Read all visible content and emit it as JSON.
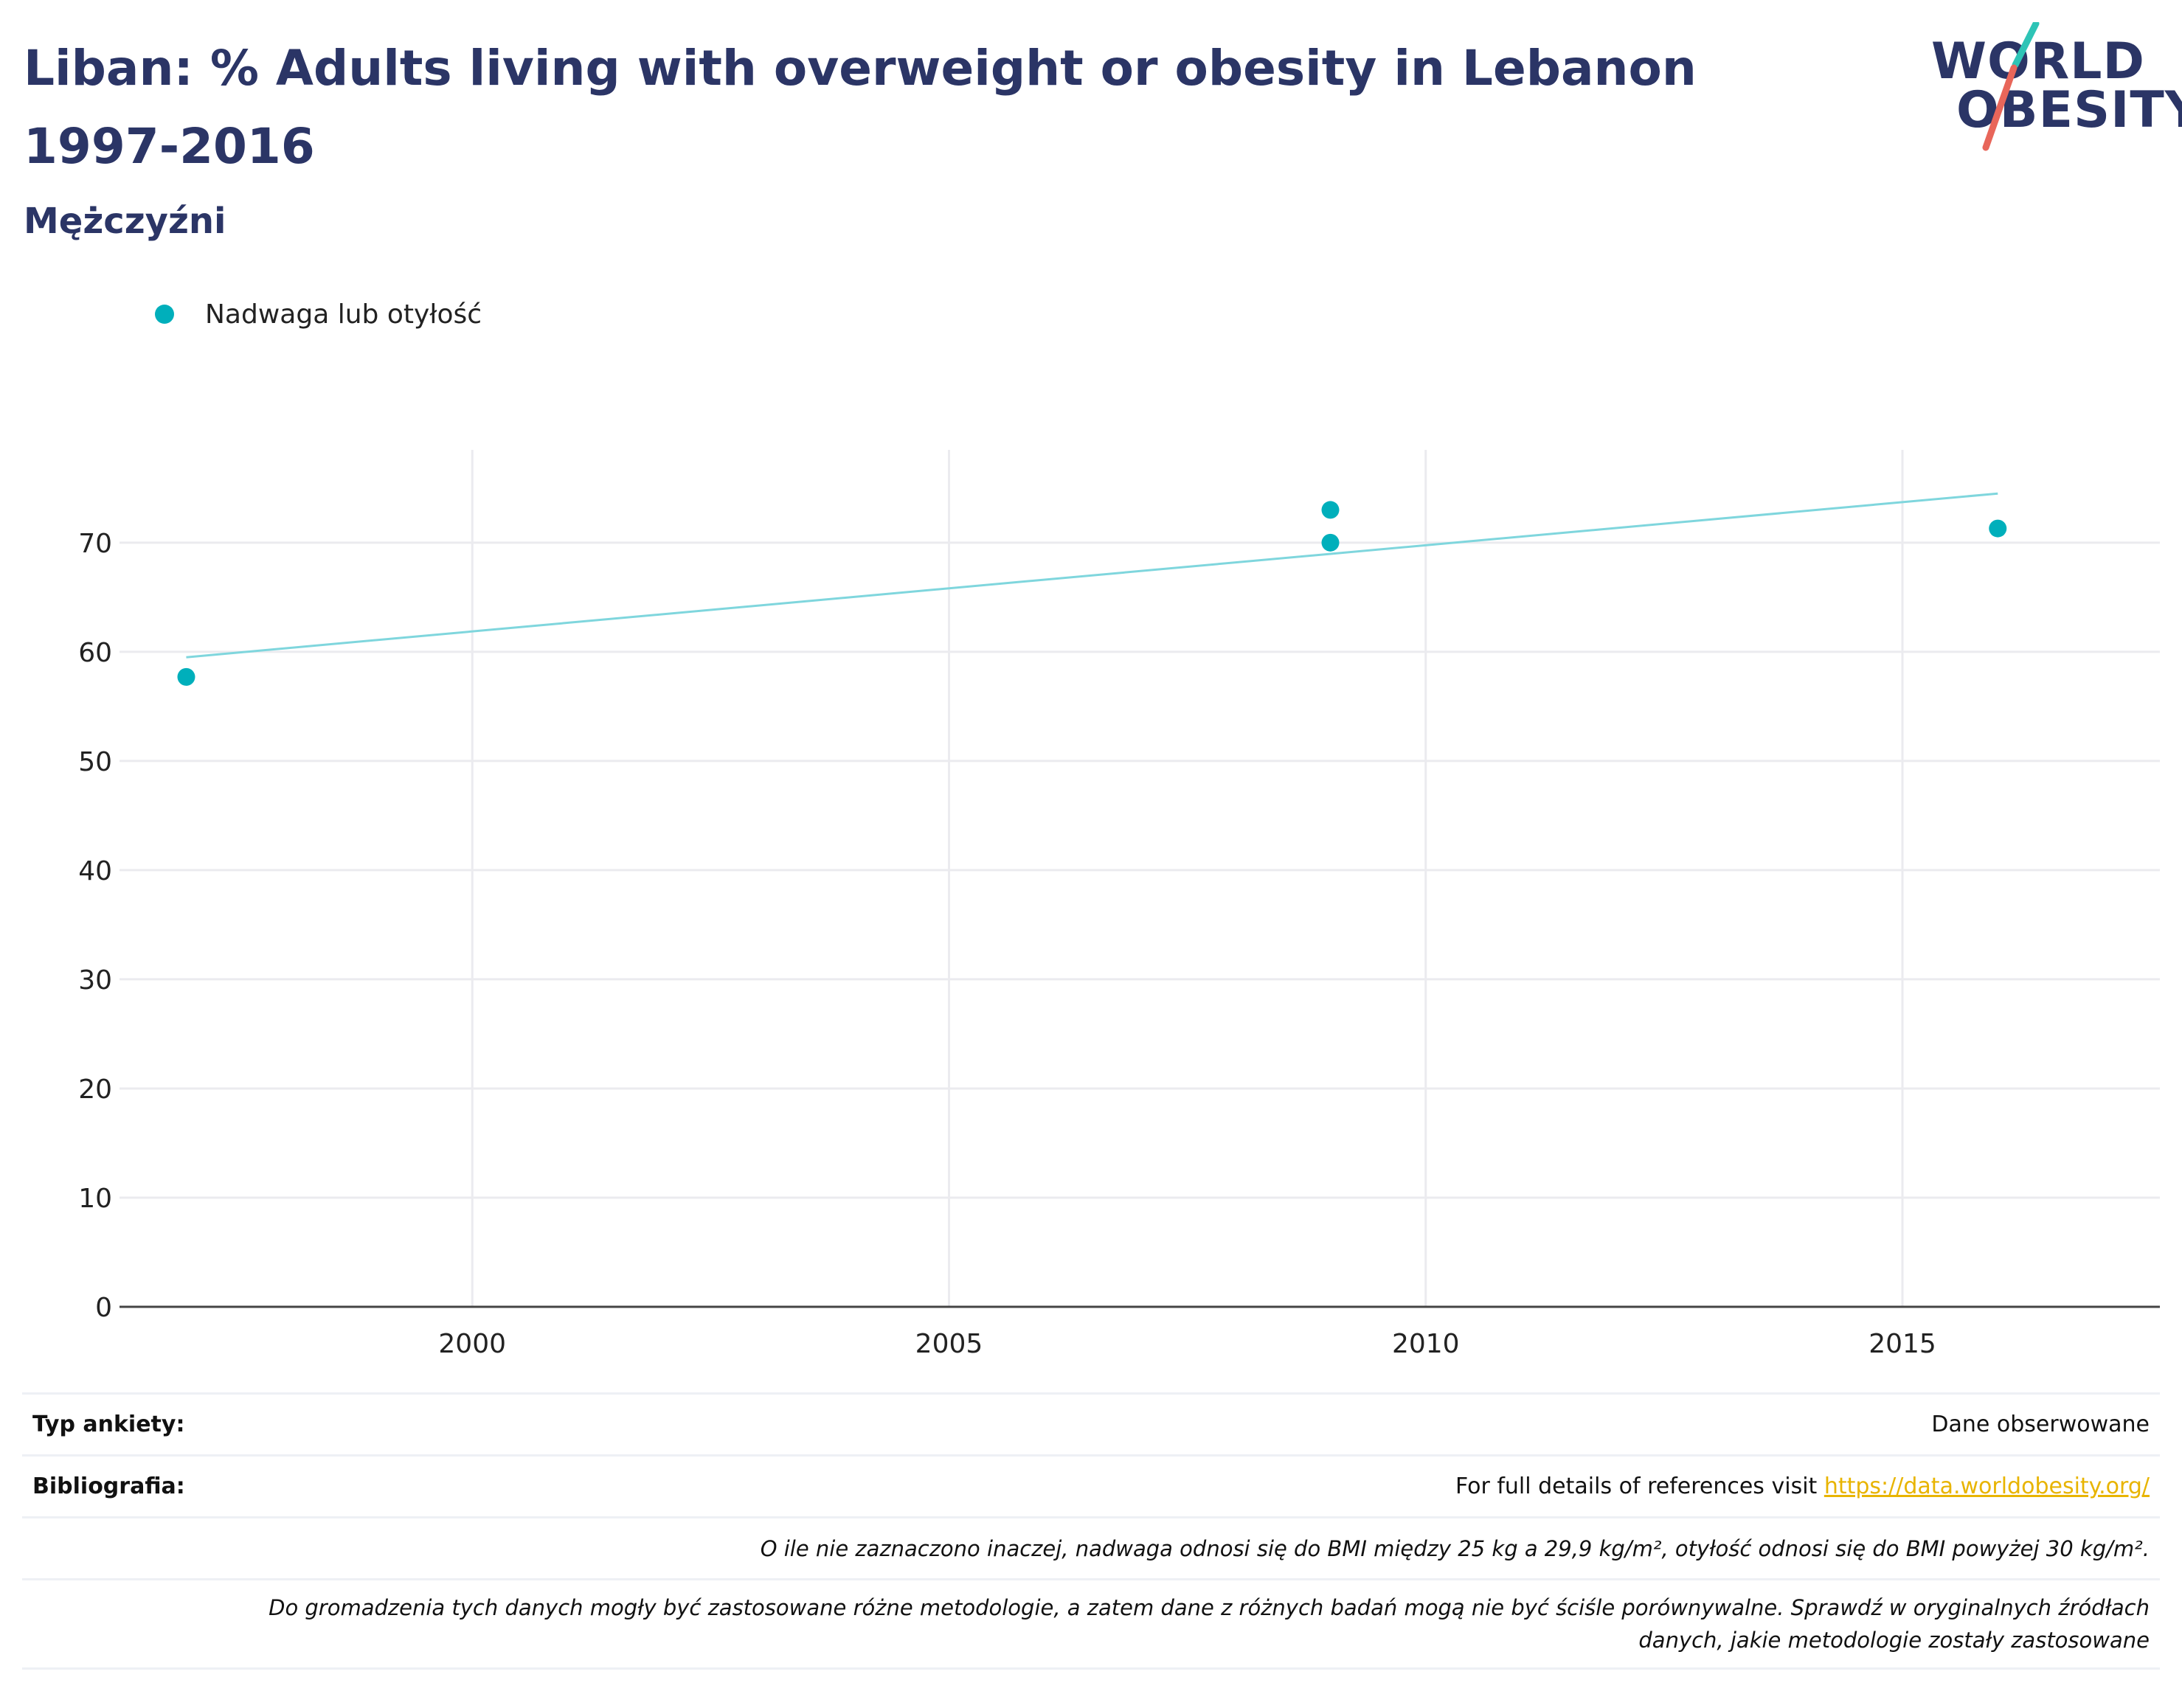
{
  "header": {
    "title": "Liban: % Adults living with overweight or obesity in Lebanon 1997-2016",
    "subtitle": "Mężczyźni"
  },
  "logo": {
    "line1": "WORLD",
    "line2": "OBESITY",
    "accent_colors": [
      "#2ec4b6",
      "#e8665a"
    ]
  },
  "legend": {
    "items": [
      {
        "label": "Nadwaga lub otyłość",
        "color": "#00afbb"
      }
    ]
  },
  "chart_data": {
    "type": "scatter",
    "title": "Liban: % Adults living with overweight or obesity in Lebanon 1997-2016",
    "subtitle": "Mężczyźni",
    "xlabel": "",
    "ylabel": "",
    "xlim": [
      1996.3,
      2017.7
    ],
    "ylim": [
      0,
      78.5
    ],
    "x_ticks": [
      2000,
      2005,
      2010,
      2015
    ],
    "y_ticks": [
      0,
      10,
      20,
      30,
      40,
      50,
      60,
      70
    ],
    "grid": true,
    "legend_position": "top-left",
    "series": [
      {
        "name": "Nadwaga lub otyłość",
        "color": "#00afbb",
        "points": [
          {
            "x": 1997,
            "y": 57.7
          },
          {
            "x": 2009,
            "y": 73.0
          },
          {
            "x": 2009,
            "y": 70.0
          },
          {
            "x": 2016,
            "y": 71.3
          }
        ]
      }
    ],
    "trendline": {
      "color": "#7fd6dd",
      "points": [
        {
          "x": 1997,
          "y": 59.5
        },
        {
          "x": 2016,
          "y": 74.5
        }
      ]
    }
  },
  "footer": {
    "survey_type_label": "Typ ankiety:",
    "survey_type_value": "Dane obserwowane",
    "bibliography_label": "Bibliografia:",
    "bibliography_text": "For full details of references visit ",
    "bibliography_link": "https://data.worldobesity.org/",
    "note1": "O ile nie zaznaczono inaczej, nadwaga odnosi się do BMI między 25 kg a 29,9 kg/m², otyłość odnosi się do BMI powyżej 30 kg/m².",
    "note2_line1": "Do gromadzenia tych danych mogły być zastosowane różne metodologie, a zatem dane z różnych badań mogą nie być ściśle porównywalne. Sprawdź w oryginalnych źródłach",
    "note2_line2": "danych, jakie metodologie zostały zastosowane"
  }
}
